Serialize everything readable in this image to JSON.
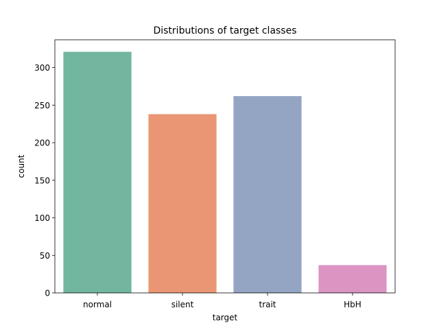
{
  "chart_data": {
    "type": "bar",
    "title": "Distributions of target classes",
    "xlabel": "target",
    "ylabel": "count",
    "categories": [
      "normal",
      "silent",
      "trait",
      "HbH"
    ],
    "values": [
      321,
      238,
      262,
      37
    ],
    "colors": [
      "#72b6a0",
      "#ea9674",
      "#94a4c3",
      "#dc94c2"
    ],
    "ylim": [
      0,
      337
    ],
    "yticks": [
      0,
      50,
      100,
      150,
      200,
      250,
      300
    ],
    "grid": false,
    "legend": "none"
  }
}
